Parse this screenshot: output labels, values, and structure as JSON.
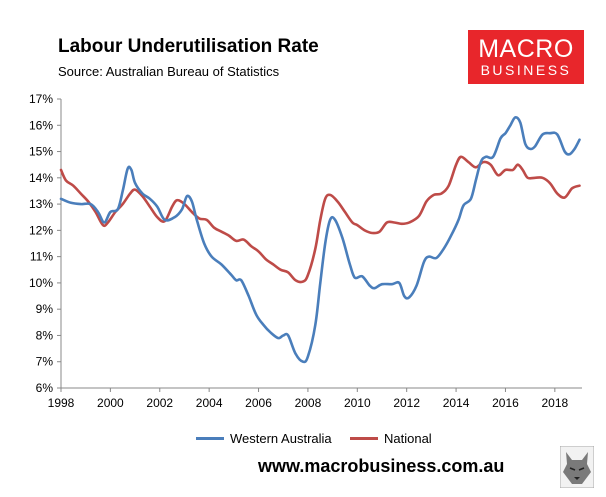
{
  "header": {
    "title": "Labour Underutilisation Rate",
    "source": "Source: Australian Bureau of Statistics"
  },
  "logo": {
    "line1": "MACRO",
    "line2": "BUSINESS",
    "color": "#e8262b"
  },
  "footer": {
    "url": "www.macrobusiness.com.au",
    "mascot_icon": "wolf-icon"
  },
  "chart_data": {
    "type": "line",
    "title": "Labour Underutilisation Rate",
    "xlabel": "",
    "ylabel": "",
    "xlim": [
      1998,
      2019.1
    ],
    "ylim": [
      6,
      17
    ],
    "x_ticks": [
      1998,
      2000,
      2002,
      2004,
      2006,
      2008,
      2010,
      2012,
      2014,
      2016,
      2018
    ],
    "y_ticks": [
      6,
      7,
      8,
      9,
      10,
      11,
      12,
      13,
      14,
      15,
      16,
      17
    ],
    "y_tick_labels": [
      "6%",
      "7%",
      "8%",
      "9%",
      "10%",
      "11%",
      "12%",
      "13%",
      "14%",
      "15%",
      "16%",
      "17%"
    ],
    "grid": false,
    "legend_position": "bottom",
    "series": [
      {
        "name": "Western Australia",
        "color": "#4a7ebb",
        "points": [
          [
            1998.0,
            13.2
          ],
          [
            1998.4,
            13.05
          ],
          [
            1998.8,
            13.0
          ],
          [
            1999.2,
            13.0
          ],
          [
            1999.5,
            12.7
          ],
          [
            1999.75,
            12.3
          ],
          [
            2000.0,
            12.7
          ],
          [
            2000.3,
            12.8
          ],
          [
            2000.5,
            13.5
          ],
          [
            2000.7,
            14.35
          ],
          [
            2000.85,
            14.3
          ],
          [
            2001.0,
            13.8
          ],
          [
            2001.3,
            13.4
          ],
          [
            2001.6,
            13.2
          ],
          [
            2001.9,
            12.9
          ],
          [
            2002.2,
            12.4
          ],
          [
            2002.6,
            12.5
          ],
          [
            2002.9,
            12.8
          ],
          [
            2003.1,
            13.3
          ],
          [
            2003.3,
            13.1
          ],
          [
            2003.5,
            12.4
          ],
          [
            2003.8,
            11.5
          ],
          [
            2004.1,
            11.0
          ],
          [
            2004.5,
            10.7
          ],
          [
            2004.9,
            10.3
          ],
          [
            2005.1,
            10.1
          ],
          [
            2005.3,
            10.1
          ],
          [
            2005.6,
            9.5
          ],
          [
            2005.9,
            8.8
          ],
          [
            2006.2,
            8.4
          ],
          [
            2006.5,
            8.1
          ],
          [
            2006.8,
            7.9
          ],
          [
            2007.0,
            8.0
          ],
          [
            2007.2,
            8.0
          ],
          [
            2007.5,
            7.3
          ],
          [
            2007.8,
            7.0
          ],
          [
            2008.0,
            7.2
          ],
          [
            2008.3,
            8.4
          ],
          [
            2008.5,
            10.0
          ],
          [
            2008.7,
            11.5
          ],
          [
            2008.9,
            12.4
          ],
          [
            2009.1,
            12.4
          ],
          [
            2009.4,
            11.7
          ],
          [
            2009.7,
            10.7
          ],
          [
            2009.9,
            10.2
          ],
          [
            2010.2,
            10.25
          ],
          [
            2010.5,
            9.9
          ],
          [
            2010.7,
            9.8
          ],
          [
            2011.0,
            9.95
          ],
          [
            2011.4,
            9.95
          ],
          [
            2011.7,
            10.0
          ],
          [
            2011.9,
            9.5
          ],
          [
            2012.1,
            9.45
          ],
          [
            2012.4,
            9.9
          ],
          [
            2012.7,
            10.8
          ],
          [
            2012.9,
            11.0
          ],
          [
            2013.2,
            10.95
          ],
          [
            2013.5,
            11.3
          ],
          [
            2013.8,
            11.8
          ],
          [
            2014.1,
            12.4
          ],
          [
            2014.3,
            12.95
          ],
          [
            2014.6,
            13.2
          ],
          [
            2014.8,
            13.9
          ],
          [
            2015.0,
            14.6
          ],
          [
            2015.2,
            14.8
          ],
          [
            2015.5,
            14.8
          ],
          [
            2015.8,
            15.5
          ],
          [
            2016.0,
            15.7
          ],
          [
            2016.2,
            16.0
          ],
          [
            2016.4,
            16.3
          ],
          [
            2016.6,
            16.1
          ],
          [
            2016.8,
            15.3
          ],
          [
            2017.0,
            15.1
          ],
          [
            2017.2,
            15.2
          ],
          [
            2017.5,
            15.65
          ],
          [
            2017.8,
            15.7
          ],
          [
            2018.1,
            15.65
          ],
          [
            2018.4,
            15.0
          ],
          [
            2018.6,
            14.9
          ],
          [
            2018.8,
            15.1
          ],
          [
            2019.0,
            15.45
          ]
        ]
      },
      {
        "name": "National",
        "color": "#be4b48",
        "points": [
          [
            1998.0,
            14.3
          ],
          [
            1998.2,
            13.9
          ],
          [
            1998.5,
            13.7
          ],
          [
            1998.8,
            13.4
          ],
          [
            1999.1,
            13.1
          ],
          [
            1999.4,
            12.7
          ],
          [
            1999.7,
            12.2
          ],
          [
            1999.9,
            12.3
          ],
          [
            2000.2,
            12.7
          ],
          [
            2000.5,
            13.0
          ],
          [
            2000.8,
            13.4
          ],
          [
            2001.0,
            13.55
          ],
          [
            2001.3,
            13.3
          ],
          [
            2001.6,
            12.9
          ],
          [
            2001.9,
            12.5
          ],
          [
            2002.2,
            12.35
          ],
          [
            2002.5,
            12.9
          ],
          [
            2002.7,
            13.15
          ],
          [
            2003.0,
            13.0
          ],
          [
            2003.3,
            12.7
          ],
          [
            2003.6,
            12.45
          ],
          [
            2003.9,
            12.4
          ],
          [
            2004.2,
            12.1
          ],
          [
            2004.5,
            11.95
          ],
          [
            2004.8,
            11.8
          ],
          [
            2005.1,
            11.6
          ],
          [
            2005.4,
            11.65
          ],
          [
            2005.7,
            11.4
          ],
          [
            2006.0,
            11.2
          ],
          [
            2006.3,
            10.9
          ],
          [
            2006.6,
            10.7
          ],
          [
            2006.9,
            10.5
          ],
          [
            2007.2,
            10.4
          ],
          [
            2007.5,
            10.1
          ],
          [
            2007.8,
            10.05
          ],
          [
            2008.0,
            10.3
          ],
          [
            2008.3,
            11.3
          ],
          [
            2008.5,
            12.4
          ],
          [
            2008.7,
            13.2
          ],
          [
            2008.9,
            13.35
          ],
          [
            2009.2,
            13.1
          ],
          [
            2009.5,
            12.7
          ],
          [
            2009.8,
            12.3
          ],
          [
            2010.0,
            12.2
          ],
          [
            2010.3,
            12.0
          ],
          [
            2010.6,
            11.9
          ],
          [
            2010.9,
            11.95
          ],
          [
            2011.2,
            12.3
          ],
          [
            2011.5,
            12.3
          ],
          [
            2011.8,
            12.25
          ],
          [
            2012.1,
            12.3
          ],
          [
            2012.5,
            12.55
          ],
          [
            2012.8,
            13.1
          ],
          [
            2013.1,
            13.35
          ],
          [
            2013.4,
            13.4
          ],
          [
            2013.7,
            13.7
          ],
          [
            2014.0,
            14.5
          ],
          [
            2014.2,
            14.8
          ],
          [
            2014.5,
            14.6
          ],
          [
            2014.8,
            14.4
          ],
          [
            2015.1,
            14.6
          ],
          [
            2015.4,
            14.5
          ],
          [
            2015.7,
            14.1
          ],
          [
            2016.0,
            14.3
          ],
          [
            2016.3,
            14.3
          ],
          [
            2016.5,
            14.5
          ],
          [
            2016.7,
            14.3
          ],
          [
            2016.9,
            14.0
          ],
          [
            2017.2,
            14.0
          ],
          [
            2017.5,
            14.0
          ],
          [
            2017.8,
            13.8
          ],
          [
            2018.1,
            13.4
          ],
          [
            2018.4,
            13.25
          ],
          [
            2018.7,
            13.6
          ],
          [
            2019.0,
            13.7
          ]
        ]
      }
    ]
  }
}
